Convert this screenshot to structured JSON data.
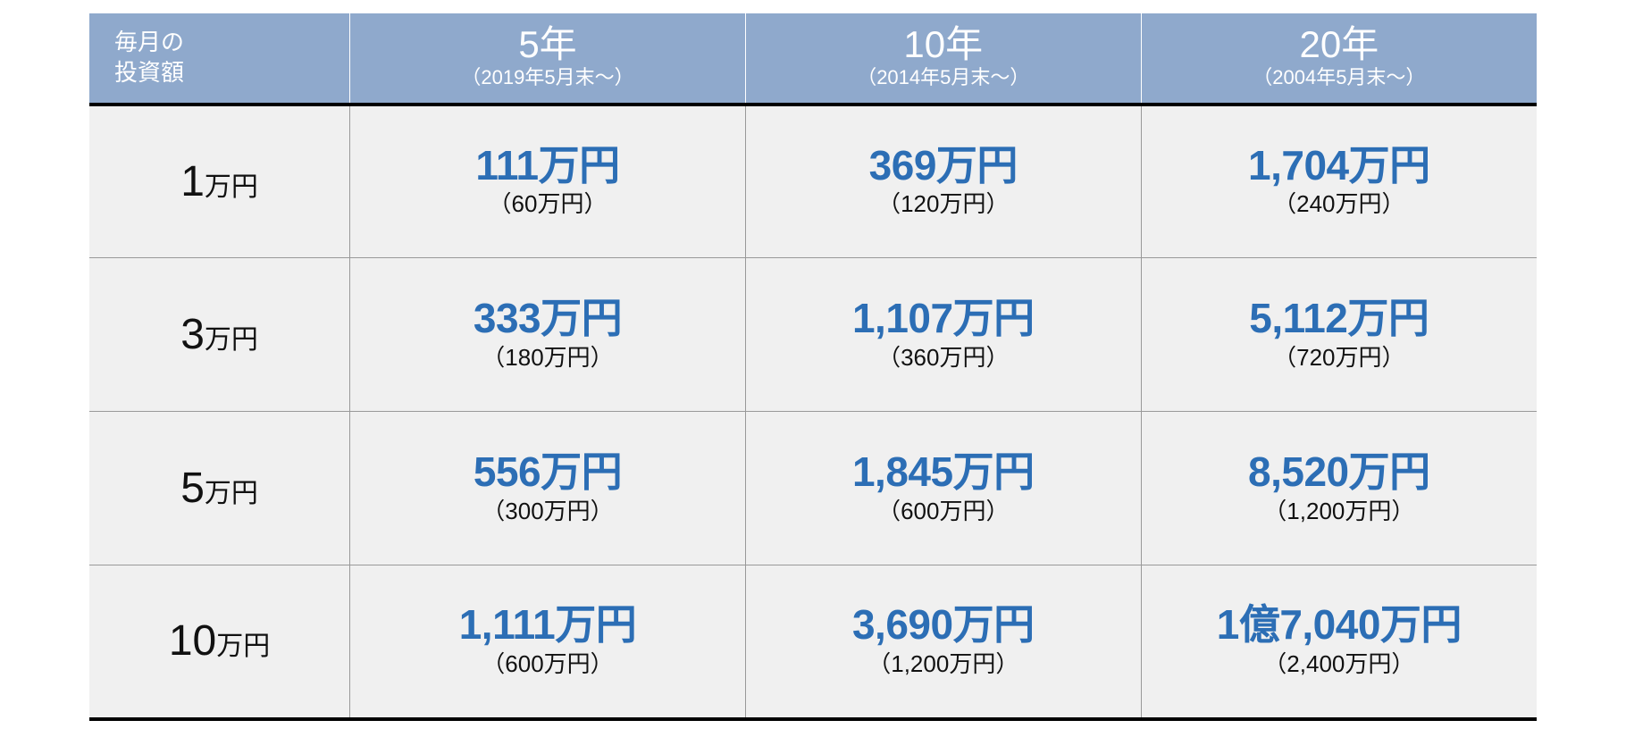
{
  "table": {
    "type": "table",
    "colors": {
      "header_bg": "#8fa9cc",
      "header_fg": "#ffffff",
      "cell_bg": "#f0f0f0",
      "value_color": "#2c6eb5",
      "text_color": "#111111",
      "border_color": "#999999",
      "header_underline": "#000000"
    },
    "fontsize": {
      "corner": 26,
      "header_main": 42,
      "header_sub": 22,
      "row_num": 48,
      "row_unit": 30,
      "val_main": 46,
      "val_sub": 26
    },
    "corner_label_line1": "毎月の",
    "corner_label_line2": "投資額",
    "columns": [
      {
        "main": "5年",
        "sub": "（2019年5月末〜）"
      },
      {
        "main": "10年",
        "sub": "（2014年5月末〜）"
      },
      {
        "main": "20年",
        "sub": "（2004年5月末〜）"
      }
    ],
    "rows": [
      {
        "label_num": "1",
        "label_unit": "万円",
        "cells": [
          {
            "main": "111万円",
            "sub": "（60万円）"
          },
          {
            "main": "369万円",
            "sub": "（120万円）"
          },
          {
            "main": "1,704万円",
            "sub": "（240万円）"
          }
        ]
      },
      {
        "label_num": "3",
        "label_unit": "万円",
        "cells": [
          {
            "main": "333万円",
            "sub": "（180万円）"
          },
          {
            "main": "1,107万円",
            "sub": "（360万円）"
          },
          {
            "main": "5,112万円",
            "sub": "（720万円）"
          }
        ]
      },
      {
        "label_num": "5",
        "label_unit": "万円",
        "cells": [
          {
            "main": "556万円",
            "sub": "（300万円）"
          },
          {
            "main": "1,845万円",
            "sub": "（600万円）"
          },
          {
            "main": "8,520万円",
            "sub": "（1,200万円）"
          }
        ]
      },
      {
        "label_num": "10",
        "label_unit": "万円",
        "cells": [
          {
            "main": "1,111万円",
            "sub": "（600万円）"
          },
          {
            "main": "3,690万円",
            "sub": "（1,200万円）"
          },
          {
            "main": "1億7,040万円",
            "sub": "（2,400万円）"
          }
        ]
      }
    ]
  }
}
